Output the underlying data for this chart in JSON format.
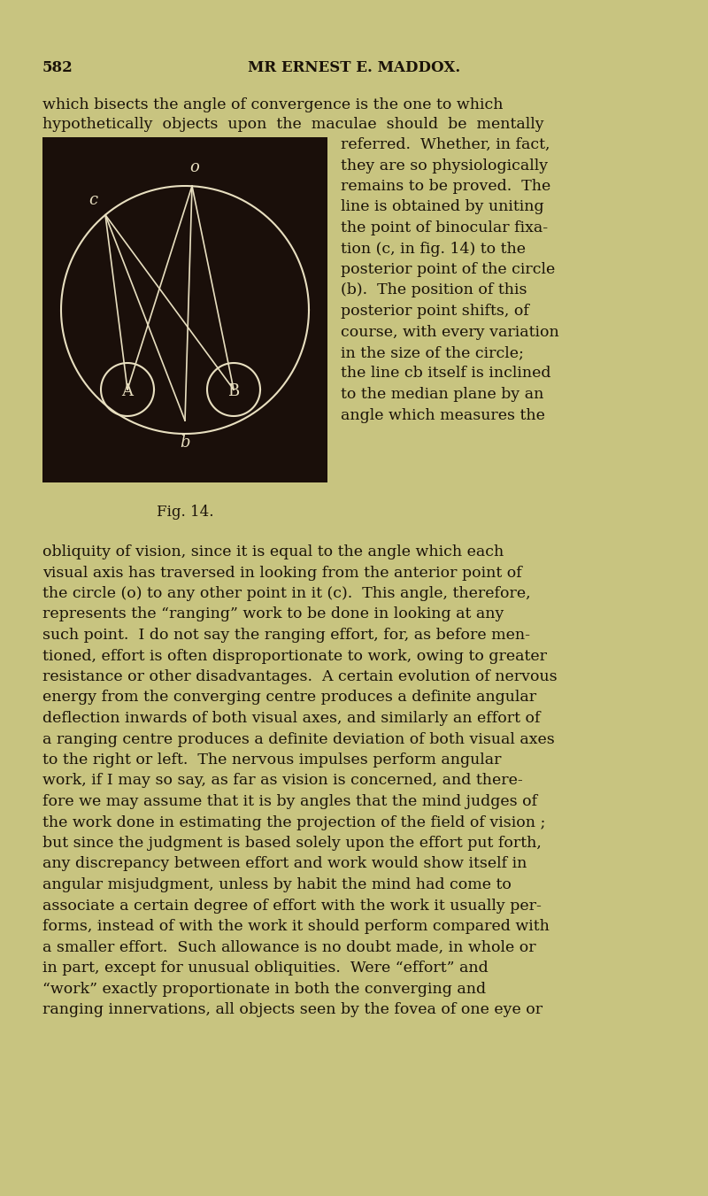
{
  "page_bg": "#c8c480",
  "header_num": "582",
  "header_title": "MR ERNEST E. MADDOX.",
  "fig_label": "Fig. 14.",
  "diagram_bg": "#1a0f0a",
  "diagram_line_color": "#e8dfc0",
  "text_color": "#1a1208",
  "body_text_color": "#2a2010",
  "para1": "which bisects the angle of convergence is the one to which\nhypothetically objects upon the maculae should be mentally\nreferred.  Whether, in fact,\nthey are so physiologically\nremains to be proved.  The\nline is obtained by uniting\nthe point of binocular fixa-\ntion (c, in fig. 14) to the\nposterior point of the circle\n(b).  The position of this\nposterior point shifts, of\ncourse, with every variation\nin the size of the circle;\nthe line cb itself is inclined\nto the median plane by an\nangle which measures the",
  "para2": "obliquity of vision, since it is equal to the angle which each\nvisual axis has traversed in looking from the anterior point of\nthe circle (o) to any other point in it (c).  This angle, therefore,\nrepresents the “ranging” work to be done in looking at any\nsuch point.  I do not say the ranging effort, for, as before men-\ntioned, effort is often disproportionate to work, owing to greater\nresistance or other disadvantages.  A certain evolution of nervous\nenergy from the converging centre produces a definite angular\ndeflection inwards of both visual axes, and similarly an effort of\na ranging centre produces a definite deviation of both visual axes\nto the right or left.  The nervous impulses perform angular\nwork, if I may so say, as far as vision is concerned, and there-\nfore we may assume that it is by angles that the mind judges of\nthe work done in estimating the projection of the field of vision ;\nbut since the judgment is based solely upon the effort put forth,\nany discrepancy between effort and work would show itself in\nangular misjudgment, unless by habit the mind had come to\nassociate a certain degree of effort with the work it usually per-\nforms, instead of with the work it should perform compared with\na smaller effort.  Such allowance is no doubt made, in whole or\nin part, except for unusual obliquities.  Were “effort” and\n“work” exactly proportionate in both the converging and\nranging innervations, all objects seen by the fovea of one eye or"
}
